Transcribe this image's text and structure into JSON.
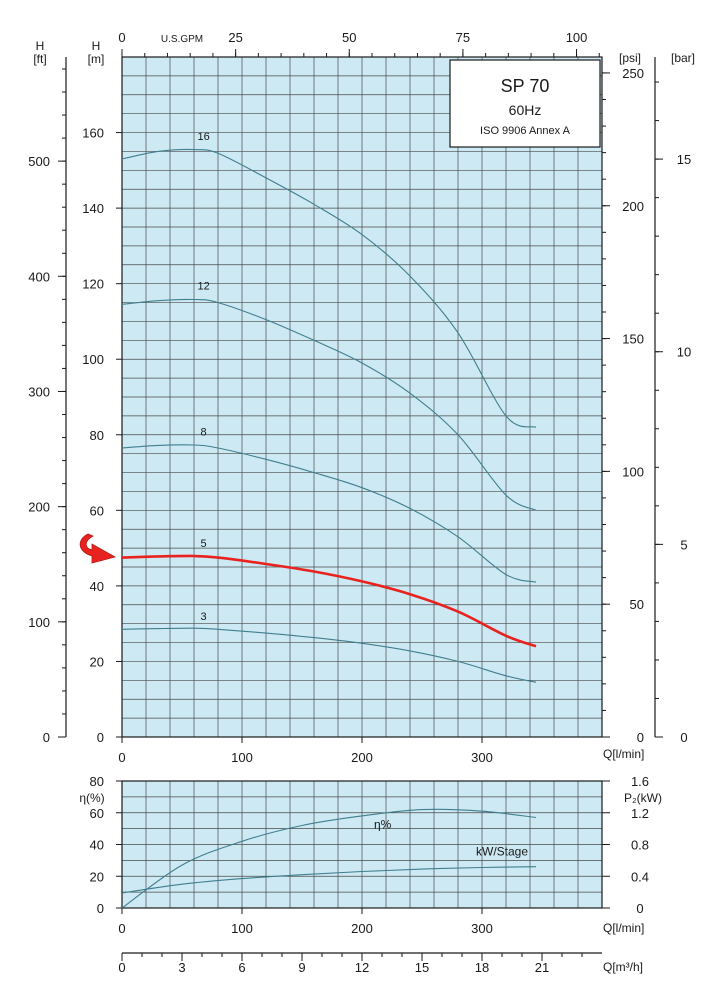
{
  "title_box": {
    "model": "SP 70",
    "frequency": "60Hz",
    "standard": "ISO 9906 Annex A"
  },
  "units": {
    "head_m_letter": "H",
    "head_m": "[m]",
    "head_ft_letter": "H",
    "head_ft": "[ft]",
    "gpm": "U.S.GPM",
    "psi": "[psi]",
    "bar": "[bar]",
    "flow_lmin": "Q[l/min]",
    "flow_m3h": "Q[m³/h]",
    "eta": "η(%)",
    "p2": "P₂(kW)"
  },
  "colors": {
    "plot_bg": "#cde9f3",
    "curve": "#3f7f8f",
    "highlight": "#e8231f"
  },
  "chart_data": [
    {
      "type": "line",
      "title": "SP 70",
      "x_axis": {
        "label": "Q[l/min]",
        "range": [
          0,
          400
        ],
        "ticks": [
          0,
          100,
          200,
          300
        ]
      },
      "y_axis": {
        "label": "H [m]",
        "range": [
          0,
          180
        ],
        "ticks": [
          0,
          20,
          40,
          60,
          80,
          100,
          120,
          140,
          160
        ]
      },
      "top_axis": {
        "label": "U.S.GPM",
        "range": [
          0,
          105.6
        ],
        "ticks": [
          0,
          25,
          50,
          75,
          100
        ]
      },
      "left_outer_axis": {
        "label": "H [ft]",
        "range": [
          0,
          590.4
        ],
        "ticks": [
          0,
          100,
          200,
          300,
          400,
          500
        ]
      },
      "right_axis_psi": {
        "label": "[psi]",
        "range": [
          0,
          256
        ],
        "ticks": [
          0,
          50,
          100,
          150,
          200,
          250
        ]
      },
      "right_axis_bar": {
        "label": "[bar]",
        "range": [
          0,
          17.65
        ],
        "ticks": [
          0,
          5,
          10,
          15
        ]
      },
      "grid": true,
      "highlighted_series": "5",
      "series": [
        {
          "name": "16",
          "x": [
            0,
            30,
            60,
            80,
            120,
            160,
            200,
            240,
            280,
            320,
            345
          ],
          "y": [
            153,
            155,
            155.5,
            154.5,
            148,
            141,
            133,
            122,
            107,
            85,
            82
          ]
        },
        {
          "name": "12",
          "x": [
            0,
            30,
            60,
            80,
            120,
            160,
            200,
            240,
            280,
            320,
            345
          ],
          "y": [
            114.5,
            115.5,
            115.8,
            115,
            110.5,
            105,
            99,
            91,
            80,
            64,
            60
          ]
        },
        {
          "name": "8",
          "x": [
            0,
            30,
            60,
            80,
            120,
            160,
            200,
            240,
            280,
            320,
            345
          ],
          "y": [
            76.5,
            77.2,
            77.3,
            76.5,
            73.5,
            70,
            66,
            60.5,
            53,
            43,
            41
          ]
        },
        {
          "name": "5",
          "x": [
            0,
            30,
            60,
            80,
            120,
            160,
            200,
            240,
            280,
            320,
            345
          ],
          "y": [
            47.5,
            47.8,
            47.9,
            47.5,
            45.8,
            43.8,
            41.2,
            37.8,
            33.2,
            26.8,
            24
          ]
        },
        {
          "name": "3",
          "x": [
            0,
            30,
            60,
            80,
            120,
            160,
            200,
            240,
            280,
            320,
            345
          ],
          "y": [
            28.5,
            28.7,
            28.8,
            28.5,
            27.5,
            26.3,
            24.8,
            22.8,
            20,
            16.2,
            14.5
          ]
        }
      ],
      "curve_labels": [
        {
          "text": "16",
          "x": 68,
          "y": 158
        },
        {
          "text": "12",
          "x": 68,
          "y": 118.5
        },
        {
          "text": "8",
          "x": 68,
          "y": 79.8
        },
        {
          "text": "5",
          "x": 68,
          "y": 50.3
        },
        {
          "text": "3",
          "x": 68,
          "y": 31
        }
      ]
    },
    {
      "type": "line",
      "x_axis": {
        "label": "Q[l/min]",
        "range": [
          0,
          400
        ],
        "ticks": [
          0,
          100,
          200,
          300
        ]
      },
      "x_axis_m3h": {
        "label": "Q[m³/h]",
        "range": [
          0,
          24
        ],
        "ticks": [
          0,
          3,
          6,
          9,
          12,
          15,
          18,
          21
        ]
      },
      "y_axis": {
        "label": "η(%)",
        "range": [
          0,
          80
        ],
        "ticks": [
          0,
          20,
          40,
          60,
          80
        ]
      },
      "right_axis_kw": {
        "label": "P₂(kW)",
        "range": [
          0,
          1.6
        ],
        "ticks": [
          0,
          0.4,
          0.8,
          1.2,
          1.6
        ],
        "tick_labels": [
          "0",
          "0.4",
          "0.8",
          "1.2",
          "1.6"
        ]
      },
      "grid": true,
      "series": [
        {
          "name": "η%",
          "x": [
            0,
            50,
            100,
            150,
            200,
            250,
            300,
            345
          ],
          "y": [
            0,
            27,
            42,
            52,
            58,
            62,
            61,
            57
          ]
        },
        {
          "name": "kW/Stage",
          "axis": "right",
          "x": [
            0,
            50,
            100,
            150,
            200,
            250,
            300,
            345
          ],
          "y": [
            0.19,
            0.3,
            0.37,
            0.42,
            0.46,
            0.49,
            0.51,
            0.52
          ]
        }
      ],
      "series_labels": [
        {
          "text": "η%",
          "x": 210,
          "y": 50
        },
        {
          "text": "kW/Stage",
          "x": 295,
          "y": 33
        }
      ]
    }
  ]
}
